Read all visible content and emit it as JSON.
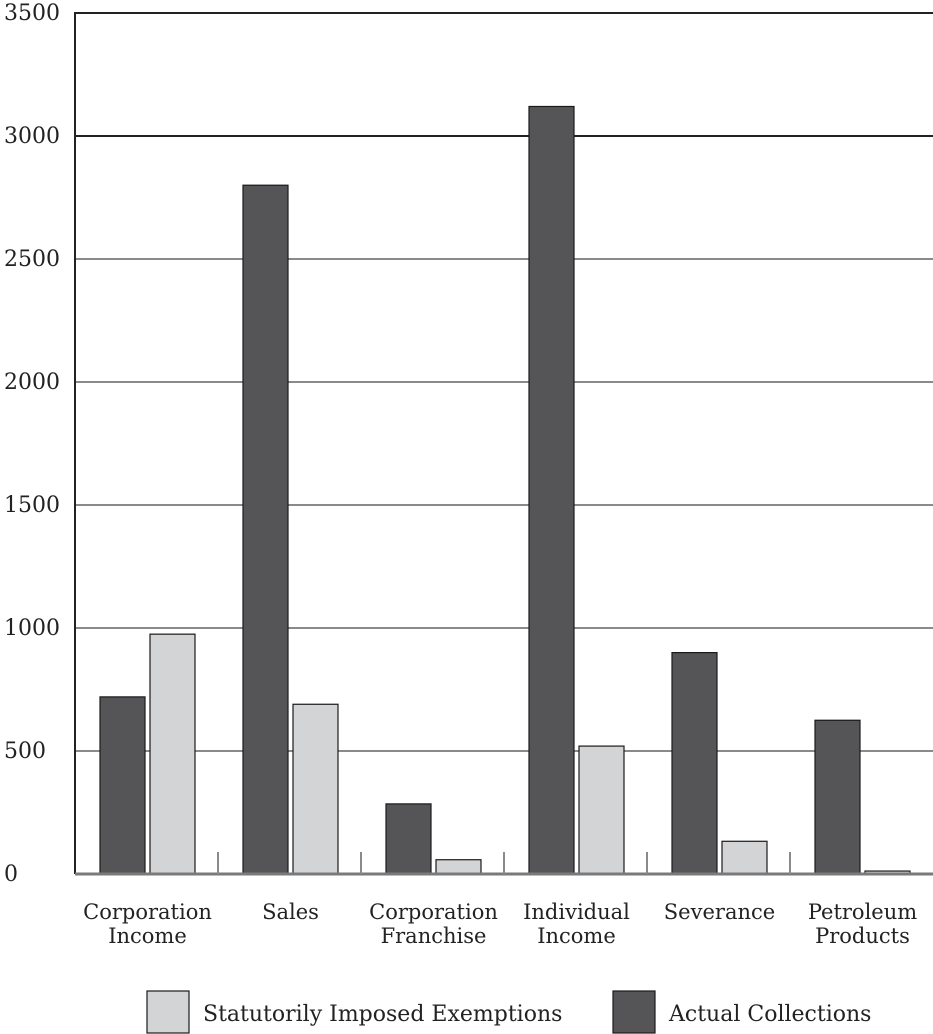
{
  "chart_data": {
    "type": "bar",
    "categories": [
      [
        "Corporation",
        "Income"
      ],
      [
        "Sales"
      ],
      [
        "Corporation",
        "Franchise"
      ],
      [
        "Individual",
        "Income"
      ],
      [
        "Severance"
      ],
      [
        "Petroleum",
        "Products"
      ]
    ],
    "series": [
      {
        "name": "Actual Collections",
        "values": [
          720,
          2800,
          285,
          3120,
          900,
          625
        ]
      },
      {
        "name": "Statutorily Imposed Exemptions",
        "values": [
          975,
          690,
          58,
          520,
          133,
          12
        ]
      }
    ],
    "yticks": [
      0,
      500,
      1000,
      1500,
      2000,
      2500,
      3000,
      3500
    ],
    "ylim": [
      0,
      3500
    ],
    "grid": true,
    "legend_position": "bottom",
    "legend_order": [
      "Statutorily Imposed Exemptions",
      "Actual Collections"
    ],
    "colors": {
      "Actual Collections": "#555557",
      "Statutorily Imposed Exemptions": "#d3d4d6",
      "gridline": "#8a8a8a",
      "axis": "#222222"
    }
  }
}
